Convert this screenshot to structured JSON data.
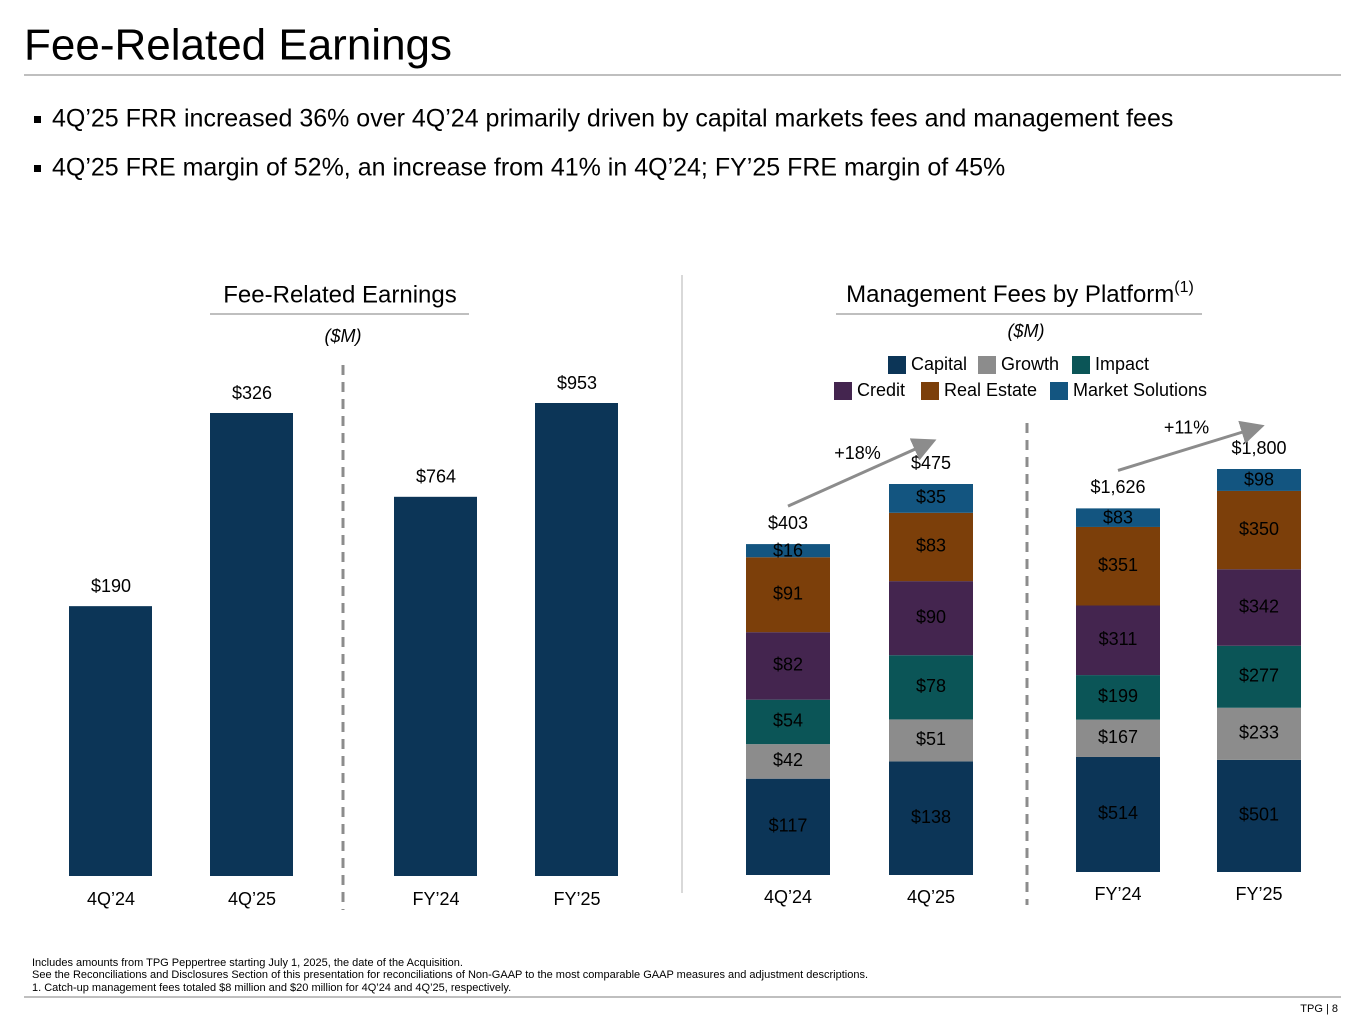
{
  "header": {
    "title": "Fee-Related Earnings"
  },
  "bullets": [
    "4Q’25 FRR increased 36% over 4Q’24 primarily driven by capital markets fees and management fees",
    "4Q’25 FRE margin of 52%, an increase from 41% in 4Q’24; FY’25 FRE margin of 45%"
  ],
  "chart_data": [
    {
      "type": "bar",
      "title": "Fee-Related Earnings",
      "subtitle": "($M)",
      "color": "#0c3557",
      "panels": [
        {
          "bars": [
            {
              "category": "4Q’24",
              "value": 190,
              "value_label": "$190"
            },
            {
              "category": "4Q’25",
              "value": 326,
              "value_label": "$326"
            }
          ]
        },
        {
          "bars": [
            {
              "category": "FY’24",
              "value": 764,
              "value_label": "$764"
            },
            {
              "category": "FY’25",
              "value": 953,
              "value_label": "$953"
            }
          ]
        }
      ]
    },
    {
      "type": "stacked-bar",
      "title": "Management Fees by Platform",
      "title_note": "(1)",
      "subtitle": "($M)",
      "series": [
        {
          "name": "Capital",
          "color": "#0c3557"
        },
        {
          "name": "Growth",
          "color": "#8c8c8c"
        },
        {
          "name": "Impact",
          "color": "#0b5557"
        },
        {
          "name": "Credit",
          "color": "#44254f"
        },
        {
          "name": "Real Estate",
          "color": "#7c3f0a"
        },
        {
          "name": "Market Solutions",
          "color": "#135580"
        }
      ],
      "panels": [
        {
          "change_label": "+18%",
          "stacks": [
            {
              "category": "4Q’24",
              "total": 403,
              "total_label": "$403",
              "segments": [
                {
                  "value": 117,
                  "label": "$117"
                },
                {
                  "value": 42,
                  "label": "$42"
                },
                {
                  "value": 54,
                  "label": "$54"
                },
                {
                  "value": 82,
                  "label": "$82"
                },
                {
                  "value": 91,
                  "label": "$91"
                },
                {
                  "value": 16,
                  "label": "$16"
                }
              ]
            },
            {
              "category": "4Q’25",
              "total": 475,
              "total_label": "$475",
              "segments": [
                {
                  "value": 138,
                  "label": "$138"
                },
                {
                  "value": 51,
                  "label": "$51"
                },
                {
                  "value": 78,
                  "label": "$78"
                },
                {
                  "value": 90,
                  "label": "$90"
                },
                {
                  "value": 83,
                  "label": "$83"
                },
                {
                  "value": 35,
                  "label": "$35"
                }
              ]
            }
          ]
        },
        {
          "change_label": "+11%",
          "stacks": [
            {
              "category": "FY’24",
              "total": 1626,
              "total_label": "$1,626",
              "segments": [
                {
                  "value": 514,
                  "label": "$514"
                },
                {
                  "value": 167,
                  "label": "$167"
                },
                {
                  "value": 199,
                  "label": "$199"
                },
                {
                  "value": 311,
                  "label": "$311"
                },
                {
                  "value": 351,
                  "label": "$351"
                },
                {
                  "value": 83,
                  "label": "$83"
                }
              ]
            },
            {
              "category": "FY’25",
              "total": 1800,
              "total_label": "$1,800",
              "segments": [
                {
                  "value": 501,
                  "label": "$501"
                },
                {
                  "value": 233,
                  "label": "$233"
                },
                {
                  "value": 277,
                  "label": "$277"
                },
                {
                  "value": 342,
                  "label": "$342"
                },
                {
                  "value": 350,
                  "label": "$350"
                },
                {
                  "value": 98,
                  "label": "$98"
                }
              ]
            }
          ]
        }
      ]
    }
  ],
  "footnotes": [
    "Includes amounts from TPG Peppertree starting July 1, 2025, the date of the Acquisition.",
    "See the Reconciliations and Disclosures Section of this presentation for reconciliations of Non-GAAP to the most comparable GAAP measures and adjustment descriptions.",
    "1. Catch-up management fees totaled $8 million and $20 million for 4Q’24 and 4Q’25, respectively."
  ],
  "page_number": "TPG | 8"
}
